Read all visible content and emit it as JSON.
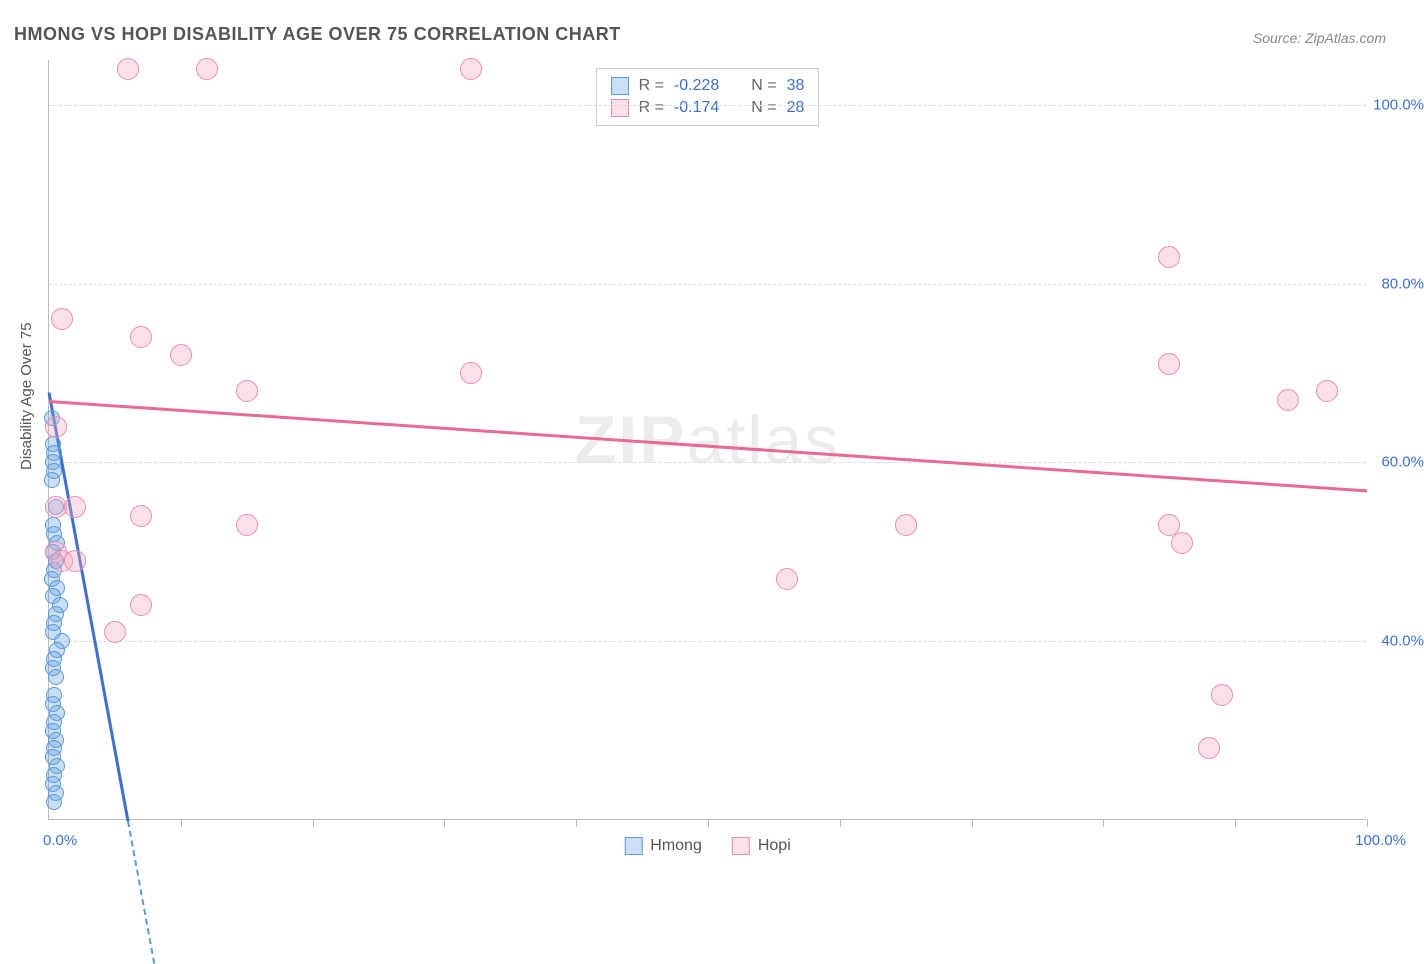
{
  "title": "HMONG VS HOPI DISABILITY AGE OVER 75 CORRELATION CHART",
  "source": "Source: ZipAtlas.com",
  "ylabel": "Disability Age Over 75",
  "watermark_a": "ZIP",
  "watermark_b": "atlas",
  "chart": {
    "type": "scatter",
    "xlim": [
      0,
      100
    ],
    "ylim": [
      20,
      105
    ],
    "ytick_values": [
      40,
      60,
      80,
      100
    ],
    "ytick_labels": [
      "40.0%",
      "60.0%",
      "80.0%",
      "100.0%"
    ],
    "xtick_values": [
      10,
      20,
      30,
      40,
      50,
      60,
      70,
      80,
      90,
      100
    ],
    "x_start_label": "0.0%",
    "x_end_label": "100.0%",
    "background_color": "#ffffff",
    "grid_color": "#dddddd",
    "series": [
      {
        "name": "Hmong",
        "color_fill": "rgba(102,163,226,0.35)",
        "color_stroke": "#5a9bd8",
        "marker_size": 16,
        "R": "-0.228",
        "N": "38",
        "regression": {
          "x1": 0,
          "y1": 68,
          "x2": 6,
          "y2": 20,
          "color": "#3b6fd6",
          "dashed_extension": true
        },
        "points": [
          {
            "x": 0.2,
            "y": 65
          },
          {
            "x": 0.3,
            "y": 62
          },
          {
            "x": 0.4,
            "y": 61
          },
          {
            "x": 0.3,
            "y": 60
          },
          {
            "x": 0.4,
            "y": 59
          },
          {
            "x": 0.2,
            "y": 58
          },
          {
            "x": 0.5,
            "y": 55
          },
          {
            "x": 0.3,
            "y": 53
          },
          {
            "x": 0.4,
            "y": 52
          },
          {
            "x": 0.6,
            "y": 51
          },
          {
            "x": 0.3,
            "y": 50
          },
          {
            "x": 0.5,
            "y": 49
          },
          {
            "x": 0.4,
            "y": 48
          },
          {
            "x": 0.2,
            "y": 47
          },
          {
            "x": 0.6,
            "y": 46
          },
          {
            "x": 0.3,
            "y": 45
          },
          {
            "x": 0.8,
            "y": 44
          },
          {
            "x": 0.5,
            "y": 43
          },
          {
            "x": 0.4,
            "y": 42
          },
          {
            "x": 0.3,
            "y": 41
          },
          {
            "x": 1.0,
            "y": 40
          },
          {
            "x": 0.6,
            "y": 39
          },
          {
            "x": 0.4,
            "y": 38
          },
          {
            "x": 0.3,
            "y": 37
          },
          {
            "x": 0.5,
            "y": 36
          },
          {
            "x": 0.4,
            "y": 34
          },
          {
            "x": 0.3,
            "y": 33
          },
          {
            "x": 0.6,
            "y": 32
          },
          {
            "x": 0.4,
            "y": 31
          },
          {
            "x": 0.3,
            "y": 30
          },
          {
            "x": 0.5,
            "y": 29
          },
          {
            "x": 0.4,
            "y": 28
          },
          {
            "x": 0.3,
            "y": 27
          },
          {
            "x": 0.6,
            "y": 26
          },
          {
            "x": 0.4,
            "y": 25
          },
          {
            "x": 0.3,
            "y": 24
          },
          {
            "x": 0.5,
            "y": 23
          },
          {
            "x": 0.4,
            "y": 22
          }
        ]
      },
      {
        "name": "Hopi",
        "color_fill": "rgba(243,167,192,0.35)",
        "color_stroke": "#e590af",
        "marker_size": 22,
        "R": "-0.174",
        "N": "28",
        "regression": {
          "x1": 0,
          "y1": 67,
          "x2": 100,
          "y2": 57,
          "color": "#e86a94",
          "dashed_extension": false
        },
        "points": [
          {
            "x": 6,
            "y": 104
          },
          {
            "x": 12,
            "y": 104
          },
          {
            "x": 32,
            "y": 104
          },
          {
            "x": 85,
            "y": 83
          },
          {
            "x": 1,
            "y": 76
          },
          {
            "x": 7,
            "y": 74
          },
          {
            "x": 10,
            "y": 72
          },
          {
            "x": 15,
            "y": 68
          },
          {
            "x": 32,
            "y": 70
          },
          {
            "x": 85,
            "y": 71
          },
          {
            "x": 94,
            "y": 67
          },
          {
            "x": 97,
            "y": 68
          },
          {
            "x": 0.5,
            "y": 64
          },
          {
            "x": 0.5,
            "y": 55
          },
          {
            "x": 2,
            "y": 55
          },
          {
            "x": 7,
            "y": 54
          },
          {
            "x": 15,
            "y": 53
          },
          {
            "x": 0.5,
            "y": 50
          },
          {
            "x": 1,
            "y": 49
          },
          {
            "x": 2,
            "y": 49
          },
          {
            "x": 56,
            "y": 47
          },
          {
            "x": 65,
            "y": 53
          },
          {
            "x": 85,
            "y": 53
          },
          {
            "x": 86,
            "y": 51
          },
          {
            "x": 7,
            "y": 44
          },
          {
            "x": 5,
            "y": 41
          },
          {
            "x": 89,
            "y": 34
          },
          {
            "x": 88,
            "y": 28
          }
        ]
      }
    ]
  },
  "stats_labels": {
    "R": "R =",
    "N": "N ="
  },
  "bottom_legend": [
    "Hmong",
    "Hopi"
  ]
}
